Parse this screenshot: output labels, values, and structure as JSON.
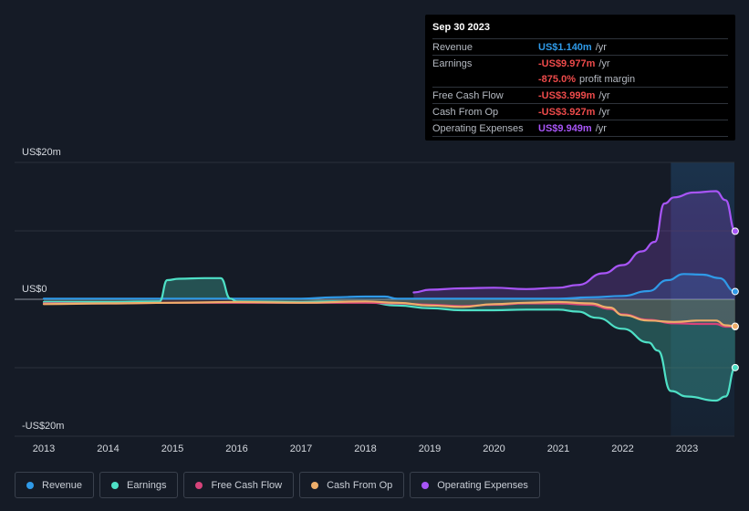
{
  "tooltip": {
    "date": "Sep 30 2023",
    "rows": [
      {
        "label": "Revenue",
        "value": "US$1.140m",
        "unit": "/yr",
        "color": "#2f9ae8"
      },
      {
        "label": "Earnings",
        "value": "-US$9.977m",
        "unit": "/yr",
        "color": "#ee4b4b"
      },
      {
        "label": "",
        "value": "-875.0%",
        "unit": "profit margin",
        "color": "#ee4b4b"
      },
      {
        "label": "Free Cash Flow",
        "value": "-US$3.999m",
        "unit": "/yr",
        "color": "#ee4b4b"
      },
      {
        "label": "Cash From Op",
        "value": "-US$3.927m",
        "unit": "/yr",
        "color": "#ee4b4b"
      },
      {
        "label": "Operating Expenses",
        "value": "US$9.949m",
        "unit": "/yr",
        "color": "#a855f7"
      }
    ]
  },
  "legend": [
    {
      "label": "Revenue",
      "color": "#2f9ae8"
    },
    {
      "label": "Earnings",
      "color": "#4ee0c6"
    },
    {
      "label": "Free Cash Flow",
      "color": "#d6437a"
    },
    {
      "label": "Cash From Op",
      "color": "#eeae6a"
    },
    {
      "label": "Operating Expenses",
      "color": "#a855f7"
    }
  ],
  "chart_data": {
    "type": "line",
    "title": "",
    "xlabel": "",
    "ylabel": "",
    "ylim": [
      -20,
      20
    ],
    "xlim": [
      2012.5,
      2023.75
    ],
    "y_tick_labels": [
      {
        "value": 20,
        "label": "US$20m"
      },
      {
        "value": 0,
        "label": "US$0"
      },
      {
        "value": -20,
        "label": "-US$20m"
      }
    ],
    "x_ticks": [
      2013,
      2014,
      2015,
      2016,
      2017,
      2018,
      2019,
      2020,
      2021,
      2022,
      2023
    ],
    "gridlines": [
      20,
      10,
      0,
      -10,
      -20
    ],
    "highlight_region": [
      2022.75,
      2023.75
    ],
    "series": [
      {
        "name": "Revenue",
        "color": "#2f9ae8",
        "points": [
          [
            2013,
            0.1
          ],
          [
            2014,
            0.1
          ],
          [
            2015,
            0.1
          ],
          [
            2016,
            0.1
          ],
          [
            2017,
            0.1
          ],
          [
            2017.5,
            0.3
          ],
          [
            2018,
            0.4
          ],
          [
            2018.3,
            0.4
          ],
          [
            2018.5,
            0.1
          ],
          [
            2019,
            0.1
          ],
          [
            2020,
            0.1
          ],
          [
            2021,
            0.1
          ],
          [
            2021.5,
            0.3
          ],
          [
            2022,
            0.5
          ],
          [
            2022.4,
            1.2
          ],
          [
            2022.7,
            2.8
          ],
          [
            2022.95,
            3.7
          ],
          [
            2023.25,
            3.6
          ],
          [
            2023.5,
            3.1
          ],
          [
            2023.75,
            1.14
          ]
        ]
      },
      {
        "name": "Earnings",
        "color": "#4ee0c6",
        "points": [
          [
            2013,
            -0.4
          ],
          [
            2014,
            -0.4
          ],
          [
            2014.8,
            -0.3
          ],
          [
            2014.92,
            2.8
          ],
          [
            2015.1,
            3.0
          ],
          [
            2015.5,
            3.1
          ],
          [
            2015.75,
            3.1
          ],
          [
            2015.9,
            0.1
          ],
          [
            2016,
            -0.3
          ],
          [
            2017,
            -0.4
          ],
          [
            2017.5,
            -0.3
          ],
          [
            2018,
            -0.4
          ],
          [
            2018.5,
            -0.9
          ],
          [
            2019,
            -1.3
          ],
          [
            2019.5,
            -1.6
          ],
          [
            2020,
            -1.6
          ],
          [
            2020.5,
            -1.5
          ],
          [
            2021,
            -1.5
          ],
          [
            2021.3,
            -1.8
          ],
          [
            2021.6,
            -2.7
          ],
          [
            2022,
            -4.3
          ],
          [
            2022.4,
            -6.3
          ],
          [
            2022.55,
            -7.5
          ],
          [
            2022.75,
            -13.4
          ],
          [
            2023.0,
            -14.2
          ],
          [
            2023.45,
            -14.8
          ],
          [
            2023.6,
            -14.2
          ],
          [
            2023.75,
            -9.977
          ]
        ]
      },
      {
        "name": "Free Cash Flow",
        "color": "#d6437a",
        "points": [
          [
            2013,
            -0.6
          ],
          [
            2014,
            -0.6
          ],
          [
            2015,
            -0.5
          ],
          [
            2016,
            -0.5
          ],
          [
            2017,
            -0.5
          ],
          [
            2018,
            -0.5
          ],
          [
            2018.5,
            -0.6
          ],
          [
            2019,
            -0.8
          ],
          [
            2019.5,
            -1.0
          ],
          [
            2020,
            -0.8
          ],
          [
            2020.5,
            -0.6
          ],
          [
            2021,
            -0.6
          ],
          [
            2021.5,
            -0.8
          ],
          [
            2021.8,
            -1.4
          ],
          [
            2022,
            -2.2
          ],
          [
            2022.4,
            -3.0
          ],
          [
            2022.8,
            -3.5
          ],
          [
            2023.2,
            -3.6
          ],
          [
            2023.45,
            -3.6
          ],
          [
            2023.6,
            -4.0
          ],
          [
            2023.75,
            -3.999
          ]
        ]
      },
      {
        "name": "Cash From Op",
        "color": "#eeae6a",
        "points": [
          [
            2013,
            -0.7
          ],
          [
            2014,
            -0.6
          ],
          [
            2015,
            -0.5
          ],
          [
            2016,
            -0.4
          ],
          [
            2017,
            -0.5
          ],
          [
            2018,
            -0.3
          ],
          [
            2018.5,
            -0.5
          ],
          [
            2019,
            -0.9
          ],
          [
            2019.5,
            -1.1
          ],
          [
            2020,
            -0.7
          ],
          [
            2020.5,
            -0.5
          ],
          [
            2021,
            -0.4
          ],
          [
            2021.5,
            -0.6
          ],
          [
            2021.8,
            -1.2
          ],
          [
            2022,
            -2.3
          ],
          [
            2022.4,
            -3.1
          ],
          [
            2022.8,
            -3.3
          ],
          [
            2023.2,
            -3.1
          ],
          [
            2023.45,
            -3.1
          ],
          [
            2023.6,
            -3.8
          ],
          [
            2023.75,
            -3.927
          ]
        ]
      },
      {
        "name": "Operating Expenses",
        "color": "#a855f7",
        "points": [
          [
            2018.75,
            1.0
          ],
          [
            2019,
            1.4
          ],
          [
            2019.5,
            1.6
          ],
          [
            2020,
            1.7
          ],
          [
            2020.5,
            1.5
          ],
          [
            2021,
            1.7
          ],
          [
            2021.3,
            2.1
          ],
          [
            2021.7,
            3.8
          ],
          [
            2022,
            5.0
          ],
          [
            2022.3,
            7.0
          ],
          [
            2022.5,
            8.4
          ],
          [
            2022.65,
            14.0
          ],
          [
            2022.8,
            14.9
          ],
          [
            2023.1,
            15.6
          ],
          [
            2023.45,
            15.8
          ],
          [
            2023.6,
            14.5
          ],
          [
            2023.75,
            9.949
          ]
        ]
      }
    ]
  }
}
